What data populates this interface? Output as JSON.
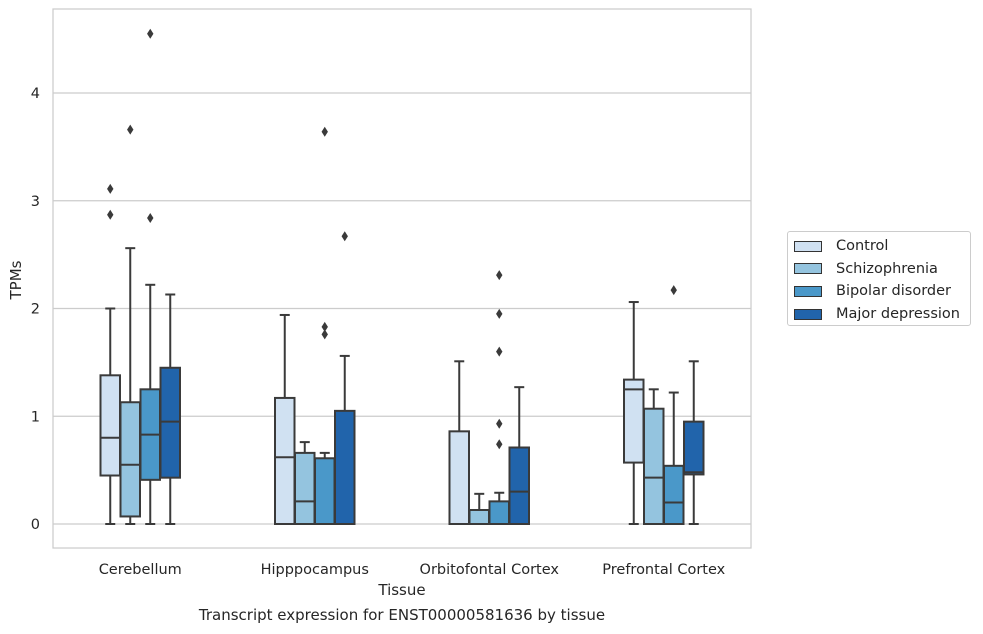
{
  "caption": "Transcript expression for ENST00000581636 by tissue",
  "colors": {
    "Control": "#d0e1f2",
    "Schizophrenia": "#94c4df",
    "Bipolar disorder": "#4a98c9",
    "Major depression": "#2164ab"
  },
  "chart_data": {
    "type": "box",
    "xlabel": "Tissue",
    "ylabel": "TPMs",
    "ylim": [
      -0.22,
      4.8
    ],
    "yticks": [
      0,
      1,
      2,
      3,
      4
    ],
    "grid": "horizontal",
    "legend_position": "right",
    "categories": [
      "Cerebellum",
      "Hipppocampus",
      "Orbitofontal Cortex",
      "Prefrontal Cortex"
    ],
    "series": [
      {
        "name": "Control",
        "boxes": [
          {
            "whislo": 0.0,
            "q1": 0.45,
            "med": 0.8,
            "q3": 1.38,
            "whishi": 2.0,
            "fliers": [
              2.87,
              3.11
            ]
          },
          {
            "whislo": 0.0,
            "q1": 0.0,
            "med": 0.62,
            "q3": 1.17,
            "whishi": 1.94,
            "fliers": []
          },
          {
            "whislo": 0.0,
            "q1": 0.0,
            "med": 0.0,
            "q3": 0.86,
            "whishi": 1.51,
            "fliers": []
          },
          {
            "whislo": 0.0,
            "q1": 0.57,
            "med": 1.25,
            "q3": 1.34,
            "whishi": 2.06,
            "fliers": []
          }
        ]
      },
      {
        "name": "Schizophrenia",
        "boxes": [
          {
            "whislo": 0.0,
            "q1": 0.07,
            "med": 0.55,
            "q3": 1.13,
            "whishi": 2.56,
            "fliers": [
              3.66
            ]
          },
          {
            "whislo": 0.0,
            "q1": 0.0,
            "med": 0.21,
            "q3": 0.66,
            "whishi": 0.76,
            "fliers": []
          },
          {
            "whislo": 0.0,
            "q1": 0.0,
            "med": 0.0,
            "q3": 0.13,
            "whishi": 0.28,
            "fliers": []
          },
          {
            "whislo": 0.0,
            "q1": 0.0,
            "med": 0.43,
            "q3": 1.07,
            "whishi": 1.25,
            "fliers": []
          }
        ]
      },
      {
        "name": "Bipolar disorder",
        "boxes": [
          {
            "whislo": 0.0,
            "q1": 0.41,
            "med": 0.83,
            "q3": 1.25,
            "whishi": 2.22,
            "fliers": [
              2.84,
              4.55
            ]
          },
          {
            "whislo": 0.0,
            "q1": 0.0,
            "med": 0.0,
            "q3": 0.61,
            "whishi": 0.66,
            "fliers": [
              1.76,
              1.83,
              3.64
            ]
          },
          {
            "whislo": 0.0,
            "q1": 0.0,
            "med": 0.0,
            "q3": 0.21,
            "whishi": 0.29,
            "fliers": [
              0.74,
              0.93,
              1.6,
              1.95,
              2.31
            ]
          },
          {
            "whislo": 0.0,
            "q1": 0.0,
            "med": 0.2,
            "q3": 0.54,
            "whishi": 1.22,
            "fliers": [
              2.17
            ]
          }
        ]
      },
      {
        "name": "Major depression",
        "boxes": [
          {
            "whislo": 0.0,
            "q1": 0.43,
            "med": 0.95,
            "q3": 1.45,
            "whishi": 2.13,
            "fliers": []
          },
          {
            "whislo": 0.0,
            "q1": 0.0,
            "med": 0.0,
            "q3": 1.05,
            "whishi": 1.56,
            "fliers": [
              2.67
            ]
          },
          {
            "whislo": 0.0,
            "q1": 0.0,
            "med": 0.3,
            "q3": 0.71,
            "whishi": 1.27,
            "fliers": []
          },
          {
            "whislo": 0.0,
            "q1": 0.46,
            "med": 0.48,
            "q3": 0.95,
            "whishi": 1.51,
            "fliers": []
          }
        ]
      }
    ]
  }
}
